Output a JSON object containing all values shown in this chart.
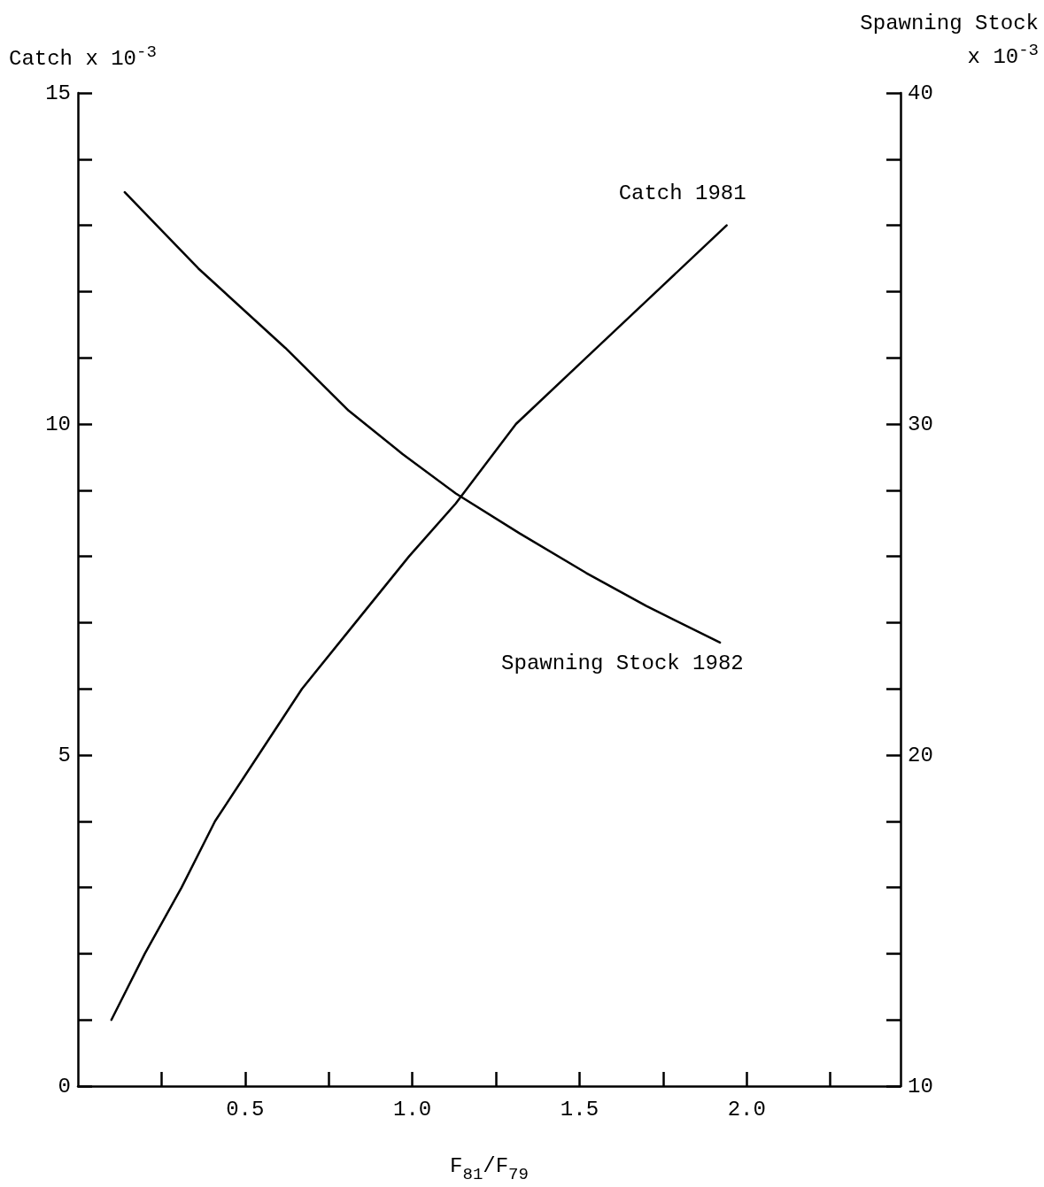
{
  "chart_data": {
    "type": "line",
    "xlabel": "F$_{81}$/F$_{79}$",
    "ylabel": "Catch x 10$^{-3}$",
    "y2label": "Spawning Stock\nx 10$^{-3}$",
    "xlim": [
      0,
      2.46
    ],
    "xticks": [
      {
        "value": 0.25,
        "label": null
      },
      {
        "value": 0.5,
        "label": "0.5"
      },
      {
        "value": 0.75,
        "label": null
      },
      {
        "value": 1,
        "label": "1.0"
      },
      {
        "value": 1.25,
        "label": null
      },
      {
        "value": 1.5,
        "label": "1.5"
      },
      {
        "value": 1.75,
        "label": null
      },
      {
        "value": 2,
        "label": "2.0"
      },
      {
        "value": 2.25,
        "label": null
      }
    ],
    "ylim": [
      0,
      15
    ],
    "yticks": [
      0,
      {
        "value": 1,
        "label": null
      },
      {
        "value": 2,
        "label": null
      },
      {
        "value": 3,
        "label": null
      },
      {
        "value": 4,
        "label": null
      },
      5,
      {
        "value": 6,
        "label": null
      },
      {
        "value": 7,
        "label": null
      },
      {
        "value": 8,
        "label": null
      },
      {
        "value": 9,
        "label": null
      },
      10,
      {
        "value": 11,
        "label": null
      },
      {
        "value": 12,
        "label": null
      },
      {
        "value": 13,
        "label": null
      },
      {
        "value": 14,
        "label": null
      },
      15
    ],
    "y2lim": [
      10,
      40
    ],
    "y2ticks": [
      10,
      {
        "value": 12,
        "label": null
      },
      {
        "value": 14,
        "label": null
      },
      {
        "value": 16,
        "label": null
      },
      {
        "value": 18,
        "label": null
      },
      20,
      {
        "value": 22,
        "label": null
      },
      {
        "value": 24,
        "label": null
      },
      {
        "value": 26,
        "label": null
      },
      {
        "value": 28,
        "label": null
      },
      30,
      {
        "value": 32,
        "label": null
      },
      {
        "value": 34,
        "label": null
      },
      {
        "value": 36,
        "label": null
      },
      {
        "value": 38,
        "label": null
      },
      40
    ],
    "grid": false,
    "legend": false,
    "marker": "none",
    "line_style": "solid",
    "series": [
      {
        "name": "Catch 1981",
        "color": "#000000",
        "x": [
          0.1,
          0.2,
          0.31,
          0.41,
          0.54,
          0.67,
          0.83,
          0.99,
          1.13,
          1.31,
          1.52,
          1.73,
          1.94
        ],
        "values": [
          1.0,
          2.0,
          3.0,
          4.0,
          5.0,
          6.0,
          7.0,
          8.0,
          8.8,
          10.0,
          11.0,
          12.0,
          13.0
        ]
      },
      {
        "name": "Spawning Stock 1982",
        "color": "#000000",
        "axis": "y2",
        "x": [
          0.14,
          0.36,
          0.62,
          0.81,
          0.97,
          1.13,
          1.32,
          1.52,
          1.7,
          1.92
        ],
        "values": [
          37.0,
          34.7,
          32.3,
          30.4,
          29.1,
          27.9,
          26.7,
          25.5,
          24.5,
          23.4
        ]
      }
    ]
  }
}
